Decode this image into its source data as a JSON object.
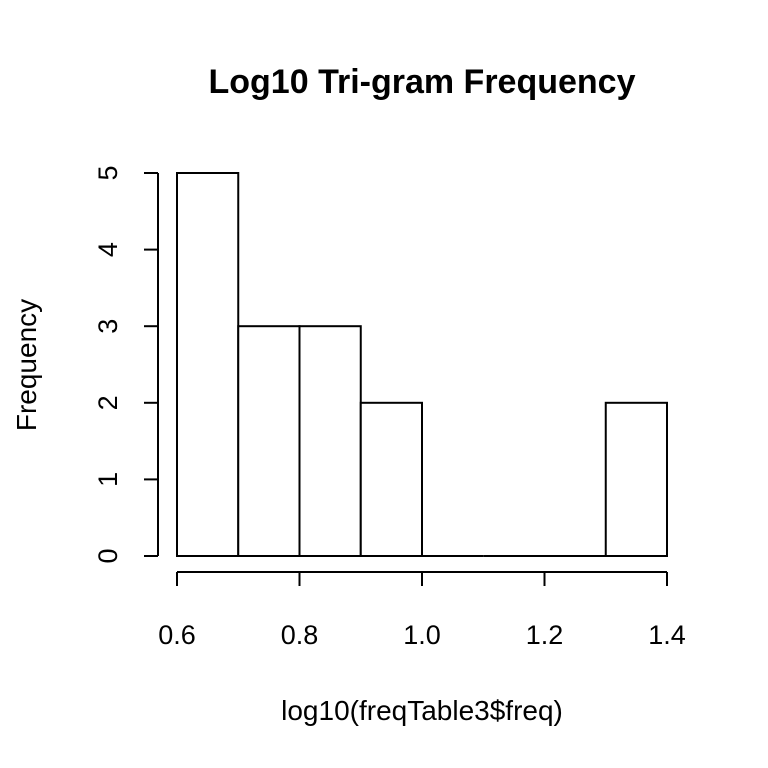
{
  "chart_data": {
    "type": "bar",
    "title": "Log10 Tri-gram Frequency",
    "xlabel": "log10(freqTable3$freq)",
    "ylabel": "Frequency",
    "bins": [
      {
        "start": 0.6,
        "end": 0.7,
        "count": 5
      },
      {
        "start": 0.7,
        "end": 0.8,
        "count": 3
      },
      {
        "start": 0.8,
        "end": 0.9,
        "count": 3
      },
      {
        "start": 0.9,
        "end": 1.0,
        "count": 2
      },
      {
        "start": 1.0,
        "end": 1.1,
        "count": 0
      },
      {
        "start": 1.1,
        "end": 1.2,
        "count": 0
      },
      {
        "start": 1.2,
        "end": 1.3,
        "count": 0
      },
      {
        "start": 1.3,
        "end": 1.4,
        "count": 2
      }
    ],
    "xlim": [
      0.6,
      1.4
    ],
    "ylim": [
      0,
      5
    ],
    "x_ticks": [
      "0.6",
      "0.8",
      "1.0",
      "1.2",
      "1.4"
    ],
    "y_ticks": [
      "0",
      "1",
      "2",
      "3",
      "4",
      "5"
    ],
    "grid": false
  }
}
